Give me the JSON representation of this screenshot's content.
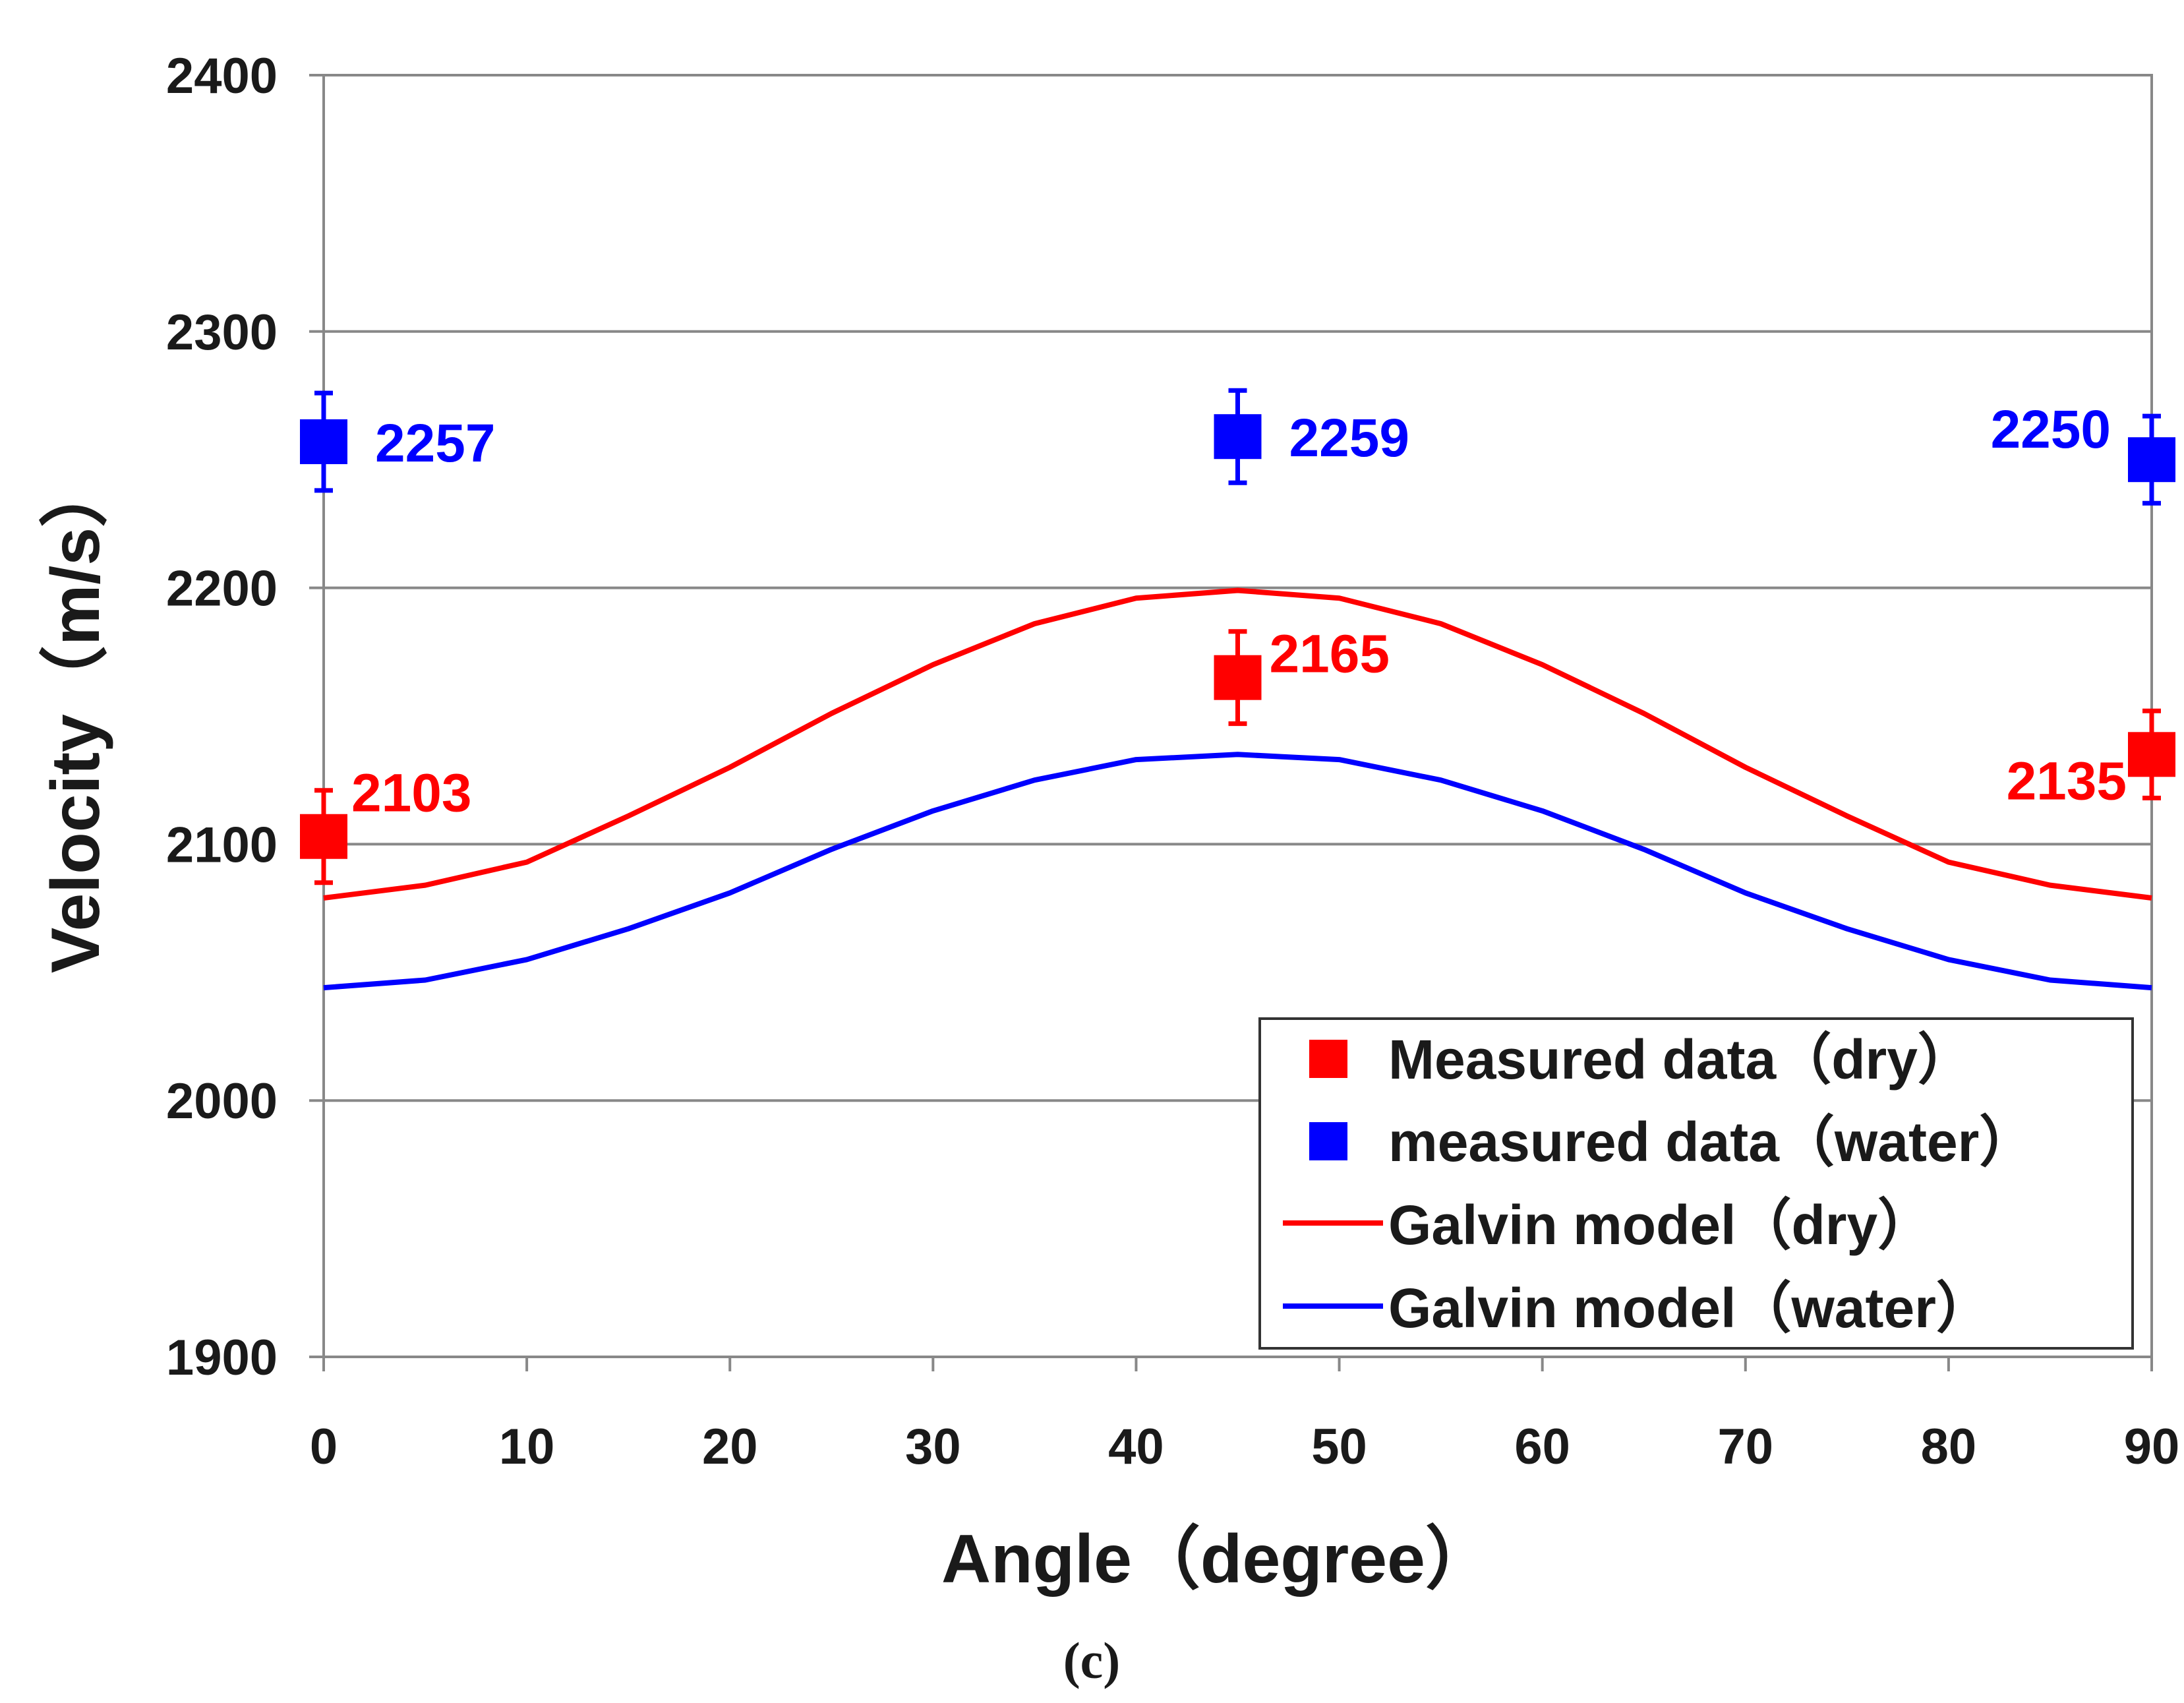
{
  "chart_data": {
    "type": "scatter",
    "title": "",
    "xlabel": "Angle（degree）",
    "ylabel": "Velocity（m/s）",
    "xlim": [
      0,
      90
    ],
    "ylim": [
      1900,
      2400
    ],
    "xticks": [
      0,
      10,
      20,
      30,
      40,
      50,
      60,
      70,
      80,
      90
    ],
    "yticks": [
      1900,
      2000,
      2100,
      2200,
      2300,
      2400
    ],
    "xtick_labels": [
      "0",
      "10",
      "20",
      "30",
      "40",
      "50",
      "60",
      "70",
      "80",
      "90"
    ],
    "ytick_labels": [
      "1900",
      "2000",
      "2100",
      "2200",
      "2300",
      "2400"
    ],
    "grid": "horizontal",
    "legend_position": "bottom-right",
    "series": [
      {
        "name": "Measured data（dry）",
        "kind": "scatter",
        "color": "#ff0000",
        "x": [
          0,
          45,
          90
        ],
        "values": [
          2103,
          2165,
          2135
        ],
        "error": [
          18,
          18,
          17
        ],
        "data_labels": [
          "2103",
          "2165",
          "2135"
        ]
      },
      {
        "name": "measured data（water）",
        "kind": "scatter",
        "color": "#0000ff",
        "x": [
          0,
          45,
          90
        ],
        "values": [
          2257,
          2259,
          2250
        ],
        "error": [
          19,
          18,
          17
        ],
        "data_labels": [
          "2257",
          "2259",
          "2250"
        ]
      },
      {
        "name": "Galvin model（dry）",
        "kind": "line",
        "color": "#ff0000",
        "x": [
          0,
          5,
          10,
          15,
          20,
          25,
          30,
          35,
          40,
          45,
          50,
          55,
          60,
          65,
          70,
          75,
          80,
          85,
          90
        ],
        "values": [
          2079,
          2084,
          2093,
          2111,
          2130,
          2151,
          2170,
          2186,
          2196,
          2199,
          2196,
          2186,
          2170,
          2151,
          2130,
          2111,
          2093,
          2084,
          2079
        ]
      },
      {
        "name": "Galvin model（water）",
        "kind": "line",
        "color": "#0000ff",
        "x": [
          0,
          5,
          10,
          15,
          20,
          25,
          30,
          35,
          40,
          45,
          50,
          55,
          60,
          65,
          70,
          75,
          80,
          85,
          90
        ],
        "values": [
          2044,
          2047,
          2055,
          2067,
          2081,
          2098,
          2113,
          2125,
          2133,
          2135,
          2133,
          2125,
          2113,
          2098,
          2081,
          2067,
          2055,
          2047,
          2044
        ]
      }
    ]
  },
  "caption": "(c)"
}
